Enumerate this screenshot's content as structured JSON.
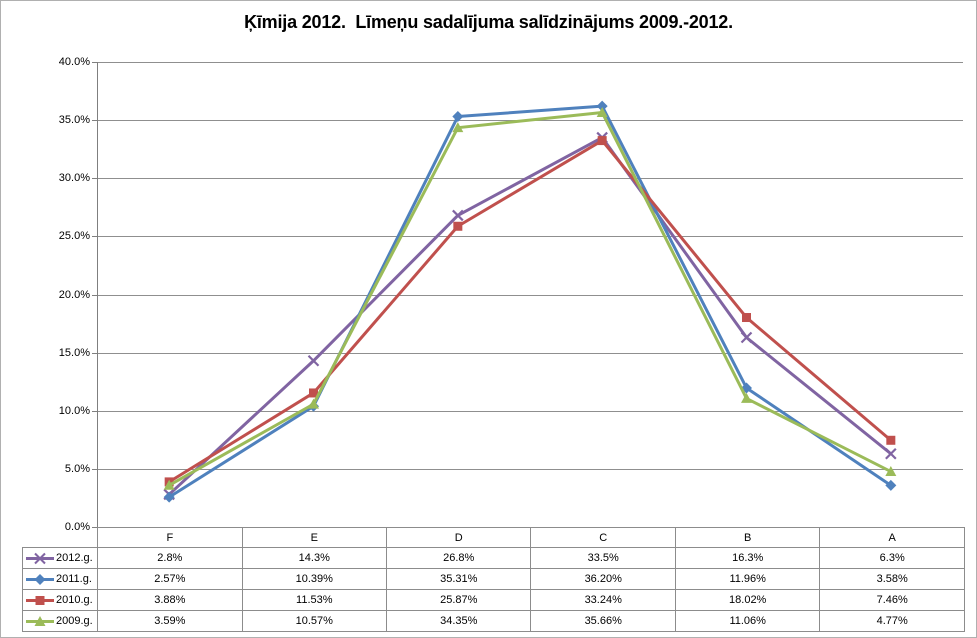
{
  "title": "Ķīmija 2012.  Līmeņu sadalījuma salīdzinājums 2009.-2012.",
  "chart_data": {
    "type": "line",
    "title": "Ķīmija 2012.  Līmeņu sadalījuma salīdzinājums 2009.-2012.",
    "categories": [
      "F",
      "E",
      "D",
      "C",
      "B",
      "A"
    ],
    "series": [
      {
        "name": "2012.g.",
        "color": "#8064A2",
        "marker": "x",
        "values": [
          2.8,
          14.3,
          26.8,
          33.5,
          16.3,
          6.3
        ],
        "labels": [
          "2.8%",
          "14.3%",
          "26.8%",
          "33.5%",
          "16.3%",
          "6.3%"
        ]
      },
      {
        "name": "2011.g.",
        "color": "#4F81BD",
        "marker": "diamond",
        "values": [
          2.57,
          10.39,
          35.31,
          36.2,
          11.96,
          3.58
        ],
        "labels": [
          "2.57%",
          "10.39%",
          "35.31%",
          "36.20%",
          "11.96%",
          "3.58%"
        ]
      },
      {
        "name": "2010.g.",
        "color": "#C0504D",
        "marker": "square",
        "values": [
          3.88,
          11.53,
          25.87,
          33.24,
          18.02,
          7.46
        ],
        "labels": [
          "3.88%",
          "11.53%",
          "25.87%",
          "33.24%",
          "18.02%",
          "7.46%"
        ]
      },
      {
        "name": "2009.g.",
        "color": "#9BBB59",
        "marker": "triangle",
        "values": [
          3.59,
          10.57,
          34.35,
          35.66,
          11.06,
          4.77
        ],
        "labels": [
          "3.59%",
          "10.57%",
          "34.35%",
          "35.66%",
          "11.06%",
          "4.77%"
        ]
      }
    ],
    "xlabel": "",
    "ylabel": "",
    "ylim": [
      0,
      40
    ],
    "ytick_step": 5,
    "ytick_labels": [
      "0.0%",
      "5.0%",
      "10.0%",
      "15.0%",
      "20.0%",
      "25.0%",
      "30.0%",
      "35.0%",
      "40.0%"
    ],
    "grid": true,
    "legend_position": "data-table-left"
  },
  "colors": {
    "gridline": "#8f8f8f",
    "axis": "#7f7f7f",
    "table_border": "#8c8c8c",
    "text": "#000000",
    "background": "#ffffff"
  }
}
